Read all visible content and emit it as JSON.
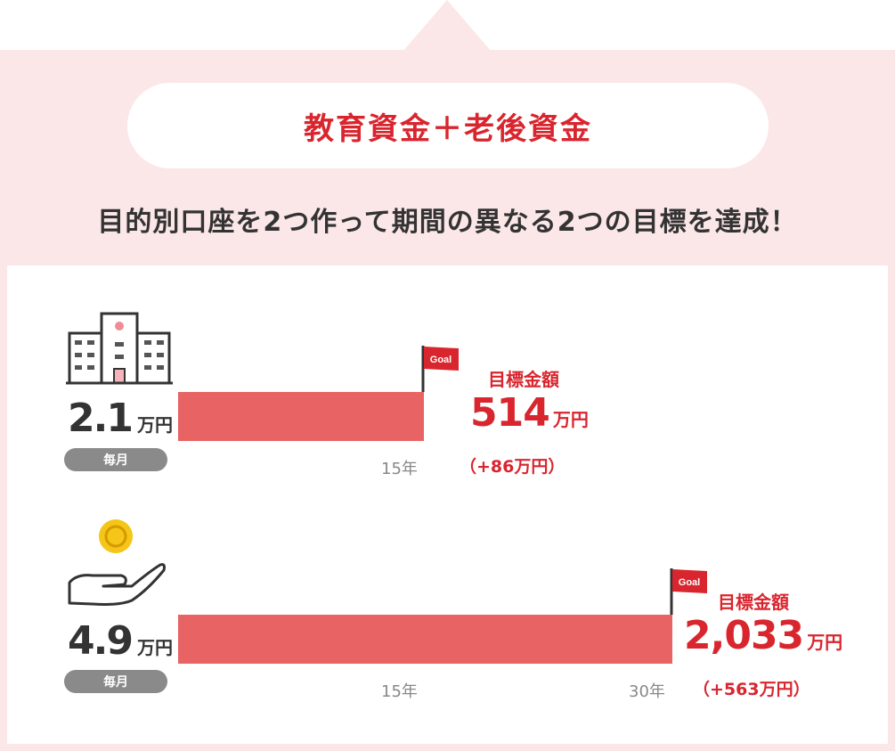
{
  "header": {
    "title": "教育資金＋老後資金",
    "subtitle": "目的別口座を2つ作って期間の異なる2つの目標を達成！"
  },
  "plans": [
    {
      "icon": "school-building-icon",
      "monthly_amount": "2.1",
      "monthly_unit": "万円",
      "frequency": "毎月",
      "goal_flag": "Goal",
      "goal_label": "目標金額",
      "goal_amount": "514",
      "goal_unit": "万円",
      "goal_diff": "（+86万円）",
      "year_labels": [
        "15年"
      ]
    },
    {
      "icon": "hand-with-coin-icon",
      "monthly_amount": "4.9",
      "monthly_unit": "万円",
      "frequency": "毎月",
      "goal_flag": "Goal",
      "goal_label": "目標金額",
      "goal_amount": "2,033",
      "goal_unit": "万円",
      "goal_diff": "（+563万円）",
      "year_labels": [
        "15年",
        "30年"
      ]
    }
  ],
  "colors": {
    "accent": "#d9252e",
    "bar": "#e86363",
    "panel_bg": "#fce7e8",
    "badge": "#8a8a8a"
  }
}
